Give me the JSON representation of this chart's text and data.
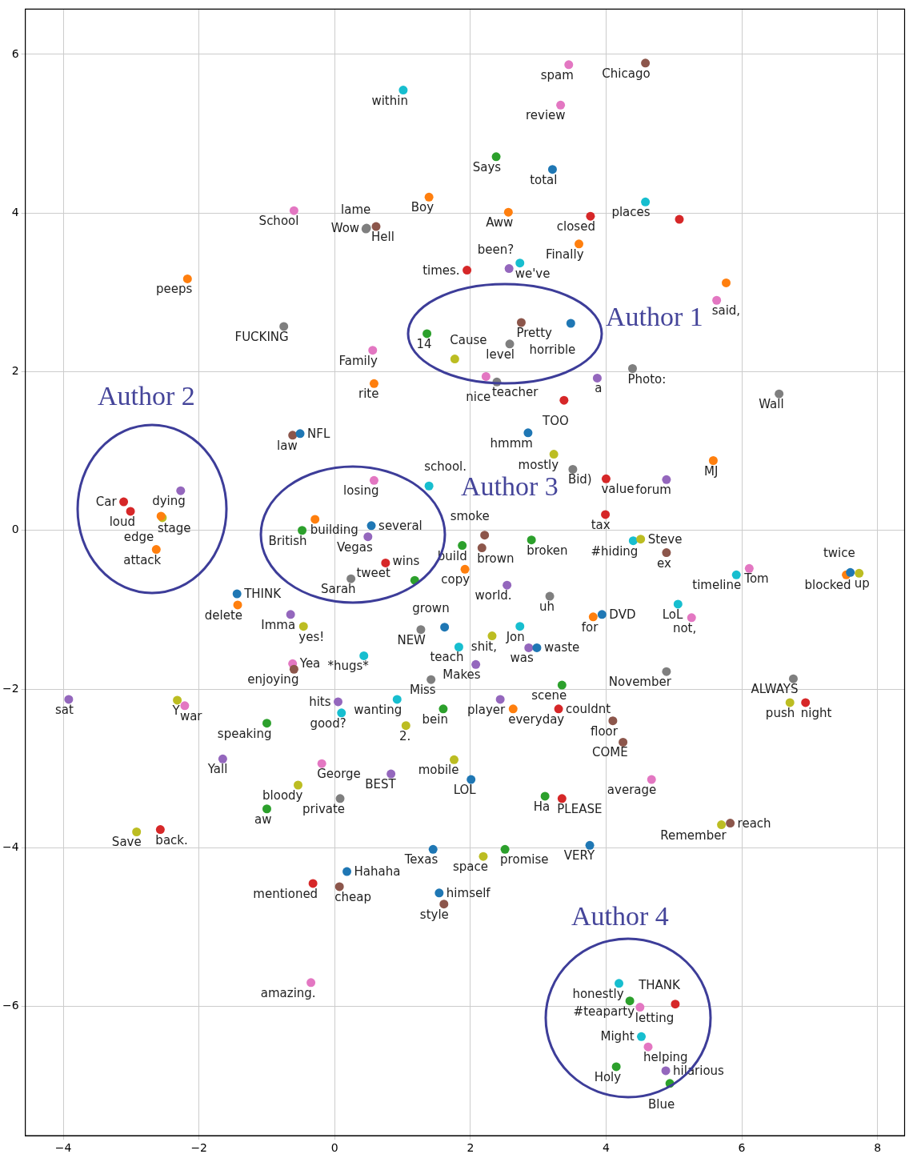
{
  "chart_data": {
    "type": "scatter",
    "marker": "circle",
    "grid": true,
    "xlim": [
      -4.56,
      8.4
    ],
    "ylim": [
      -7.63,
      6.57
    ],
    "xticks": [
      {
        "value": -4,
        "label": "−4"
      },
      {
        "value": -2,
        "label": "−2"
      },
      0,
      2,
      4,
      6,
      8
    ],
    "yticks": [
      {
        "value": -6,
        "label": "−6"
      },
      {
        "value": -4,
        "label": "−4"
      },
      {
        "value": -2,
        "label": "−2"
      },
      0,
      2,
      4,
      6
    ],
    "x": [
      3.45,
      4.58,
      1.01,
      3.33,
      2.38,
      3.21,
      1.39,
      2.56,
      3.77,
      4.58,
      5.08,
      -0.6,
      0.47,
      0.61,
      0.46,
      3.6,
      -2.17,
      1.95,
      2.57,
      2.73,
      5.77,
      5.63,
      -0.75,
      2.75,
      3.48,
      1.36,
      2.58,
      1.77,
      0.56,
      4.39,
      3.87,
      2.23,
      2.39,
      0.58,
      3.38,
      6.55,
      -0.62,
      -0.51,
      2.85,
      3.23,
      3.51,
      4.0,
      4.89,
      5.58,
      -2.27,
      -3.11,
      -3.01,
      -2.54,
      -2.56,
      -2.63,
      0.58,
      1.39,
      -0.29,
      -0.48,
      0.54,
      0.49,
      3.99,
      2.21,
      1.88,
      2.17,
      2.9,
      4.4,
      4.51,
      4.89,
      0.75,
      1.18,
      0.24,
      1.92,
      2.54,
      6.11,
      5.92,
      7.54,
      7.6,
      7.73,
      -1.44,
      -1.43,
      3.17,
      3.94,
      3.81,
      5.06,
      5.26,
      -0.65,
      -0.46,
      1.27,
      1.62,
      2.32,
      2.73,
      1.83,
      2.86,
      2.98,
      2.08,
      0.43,
      -0.62,
      -0.6,
      4.89,
      6.76,
      1.42,
      3.35,
      -3.92,
      -2.32,
      -2.21,
      0.92,
      0.05,
      0.1,
      1.6,
      2.44,
      2.63,
      3.3,
      6.71,
      6.94,
      -1.0,
      1.05,
      4.1,
      4.25,
      -1.65,
      -0.19,
      1.76,
      4.67,
      0.83,
      2.01,
      -0.54,
      0.08,
      3.1,
      3.35,
      -1.0,
      5.7,
      5.83,
      -2.92,
      -2.57,
      1.45,
      2.51,
      2.19,
      3.76,
      0.18,
      -0.32,
      0.07,
      1.54,
      1.61,
      -0.35,
      4.19,
      4.35,
      4.5,
      5.02,
      4.52,
      4.62,
      4.15,
      4.88,
      4.94
    ],
    "values": [
      5.87,
      5.89,
      5.55,
      5.36,
      4.71,
      4.55,
      4.2,
      4.01,
      3.96,
      4.14,
      3.92,
      4.03,
      3.81,
      3.83,
      3.8,
      3.61,
      3.17,
      3.28,
      3.3,
      3.37,
      3.12,
      2.9,
      2.57,
      2.62,
      2.61,
      2.48,
      2.35,
      2.16,
      2.27,
      2.04,
      1.92,
      1.94,
      1.87,
      1.85,
      1.64,
      1.72,
      1.2,
      1.22,
      1.23,
      0.96,
      0.77,
      0.65,
      0.64,
      0.88,
      0.5,
      0.36,
      0.24,
      0.16,
      0.18,
      -0.24,
      0.63,
      0.56,
      0.14,
      0.0,
      0.06,
      -0.08,
      0.2,
      -0.06,
      -0.19,
      -0.22,
      -0.12,
      -0.13,
      -0.11,
      -0.28,
      -0.41,
      -0.63,
      -0.61,
      -0.49,
      -0.69,
      -0.48,
      -0.56,
      -0.56,
      -0.53,
      -0.54,
      -0.8,
      -0.94,
      -0.83,
      -1.06,
      -1.09,
      -0.93,
      -1.1,
      -1.06,
      -1.21,
      -1.25,
      -1.22,
      -1.33,
      -1.21,
      -1.47,
      -1.48,
      -1.48,
      -1.69,
      -1.58,
      -1.68,
      -1.75,
      -1.78,
      -1.87,
      -1.88,
      -1.95,
      -2.13,
      -2.14,
      -2.21,
      -2.13,
      -2.16,
      -2.3,
      -2.25,
      -2.13,
      -2.25,
      -2.25,
      -2.17,
      -2.17,
      -2.43,
      -2.46,
      -2.4,
      -2.67,
      -2.88,
      -2.94,
      -2.89,
      -3.14,
      -3.07,
      -3.14,
      -3.21,
      -3.38,
      -3.35,
      -3.38,
      -3.51,
      -3.71,
      -3.69,
      -3.8,
      -3.77,
      -4.02,
      -4.02,
      -4.11,
      -3.97,
      -4.3,
      -4.45,
      -4.49,
      -4.57,
      -4.71,
      -5.7,
      -5.71,
      -5.93,
      -6.01,
      -5.97,
      -6.38,
      -6.51,
      -6.76,
      -6.81,
      -6.97
    ],
    "value_labels": [
      "spam",
      "Chicago",
      "within",
      "review",
      "Says",
      "total",
      "Boy",
      "Aww",
      "closed",
      "places",
      null,
      "School",
      "Wow",
      "Hell",
      "lame",
      "Finally",
      "peeps",
      "times.",
      "been?",
      "we've",
      null,
      "said,",
      "FUCKING",
      "Pretty",
      "horrible",
      null,
      "level",
      "Cause",
      "Family",
      "Photo:",
      "a",
      "nice",
      "teacher",
      "rite",
      "TOO",
      "Wall",
      "law",
      "NFL",
      "hmmm",
      "mostly",
      "Bid)",
      "value",
      "forum",
      "MJ",
      "dying",
      "Car",
      "loud",
      "stage",
      "edge",
      "attack",
      "losing",
      "school.",
      "building",
      "British",
      "several",
      "Vegas",
      "tax",
      "smoke",
      "build",
      "brown",
      "broken",
      "#hiding",
      "Steve",
      "ex",
      "tweet",
      "wins",
      "Sarah",
      "copy",
      "world.",
      "Tom",
      "timeline",
      "blocked",
      "twice",
      "up",
      "THINK",
      "delete",
      "uh",
      "DVD",
      "for",
      "LoL",
      "not,",
      "Imma",
      "yes!",
      "NEW",
      "grown",
      "shit,",
      "Jon",
      "teach",
      "was",
      "waste",
      "Makes",
      "*hugs*",
      "Yea",
      "enjoying",
      "November",
      "ALWAYS",
      "Miss",
      "scene",
      "sat",
      "Y",
      "war",
      "wanting",
      "hits",
      "good?",
      "bein",
      "player",
      "everyday",
      "couldnt",
      "push",
      "night",
      "speaking",
      null,
      "floor",
      "COME",
      "Yall",
      "George",
      "mobile",
      "average",
      "BEST",
      "LOL",
      "bloody",
      "private",
      "Ha",
      "PLEASE",
      "aw",
      "Remember",
      "reach",
      "Save",
      "back.",
      "Texas",
      "promise",
      "space",
      "VERY",
      "Hahaha",
      "mentioned",
      "cheap",
      "himself",
      "style",
      "amazing.",
      "honestly",
      "#teaparty",
      "letting",
      "THANK",
      "Might",
      "helping",
      "Holy",
      "hilarious",
      "Blue"
    ],
    "colors": [
      "#e377c2",
      "#8c564b",
      "#17becf",
      "#e377c2",
      "#2ca02c",
      "#1f77b4",
      "#ff7f0e",
      "#ff7f0e",
      "#d62728",
      "#17becf",
      "#d62728",
      "#e377c2",
      "#7f7f7f",
      "#8c564b",
      "#7f7f7f",
      "#ff7f0e",
      "#ff7f0e",
      "#d62728",
      "#9467bd",
      "#17becf",
      "#ff7f0e",
      "#e377c2",
      "#7f7f7f",
      "#8c564b",
      "#1f77b4",
      "#2ca02c",
      "#7f7f7f",
      "#bcbd22",
      "#e377c2",
      "#7f7f7f",
      "#9467bd",
      "#e377c2",
      "#7f7f7f",
      "#ff7f0e",
      "#d62728",
      "#7f7f7f",
      "#8c564b",
      "#1f77b4",
      "#1f77b4",
      "#bcbd22",
      "#7f7f7f",
      "#d62728",
      "#9467bd",
      "#ff7f0e",
      "#9467bd",
      "#d62728",
      "#d62728",
      "#bcbd22",
      "#ff7f0e",
      "#ff7f0e",
      "#e377c2",
      "#17becf",
      "#ff7f0e",
      "#2ca02c",
      "#1f77b4",
      "#9467bd",
      "#d62728",
      "#8c564b",
      "#2ca02c",
      "#8c564b",
      "#2ca02c",
      "#17becf",
      "#bcbd22",
      "#8c564b",
      "#d62728",
      "#2ca02c",
      "#7f7f7f",
      "#ff7f0e",
      "#9467bd",
      "#e377c2",
      "#17becf",
      "#ff7f0e",
      "#1f77b4",
      "#bcbd22",
      "#1f77b4",
      "#ff7f0e",
      "#7f7f7f",
      "#1f77b4",
      "#ff7f0e",
      "#17becf",
      "#e377c2",
      "#9467bd",
      "#bcbd22",
      "#7f7f7f",
      "#1f77b4",
      "#bcbd22",
      "#17becf",
      "#17becf",
      "#9467bd",
      "#1f77b4",
      "#9467bd",
      "#17becf",
      "#e377c2",
      "#8c564b",
      "#7f7f7f",
      "#7f7f7f",
      "#7f7f7f",
      "#2ca02c",
      "#9467bd",
      "#bcbd22",
      "#e377c2",
      "#17becf",
      "#9467bd",
      "#17becf",
      "#2ca02c",
      "#9467bd",
      "#ff7f0e",
      "#d62728",
      "#bcbd22",
      "#d62728",
      "#2ca02c",
      "#bcbd22",
      "#8c564b",
      "#8c564b",
      "#9467bd",
      "#e377c2",
      "#bcbd22",
      "#e377c2",
      "#9467bd",
      "#1f77b4",
      "#bcbd22",
      "#7f7f7f",
      "#2ca02c",
      "#d62728",
      "#2ca02c",
      "#bcbd22",
      "#8c564b",
      "#bcbd22",
      "#d62728",
      "#1f77b4",
      "#2ca02c",
      "#bcbd22",
      "#1f77b4",
      "#1f77b4",
      "#d62728",
      "#8c564b",
      "#1f77b4",
      "#8c564b",
      "#e377c2",
      "#17becf",
      "#2ca02c",
      "#e377c2",
      "#d62728",
      "#17becf",
      "#e377c2",
      "#2ca02c",
      "#9467bd",
      "#2ca02c"
    ],
    "annotations": [
      "Author 1",
      "Author 2",
      "Author 3",
      "Author 4",
      {
        "text": "14",
        "x": 1.36,
        "y": 2.48
      },
      {
        "text": "2.",
        "x": 1.05,
        "y": -2.46
      }
    ]
  }
}
